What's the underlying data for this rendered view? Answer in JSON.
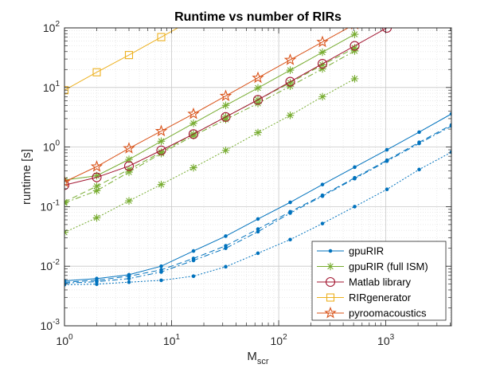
{
  "chart_data": {
    "type": "line",
    "title": "Runtime vs number of RIRs",
    "xlabel": "M",
    "xlabel_sub": "scr",
    "ylabel": "runtime [s]",
    "xscale": "log",
    "yscale": "log",
    "xlim": [
      1,
      4096
    ],
    "ylim": [
      0.001,
      100
    ],
    "grid": true,
    "minor_grid": true,
    "legend_position": "bottom-right",
    "x_ticks": [
      {
        "value": 1,
        "base": "10",
        "exp": "0"
      },
      {
        "value": 10,
        "base": "10",
        "exp": "1"
      },
      {
        "value": 100,
        "base": "10",
        "exp": "2"
      },
      {
        "value": 1000,
        "base": "10",
        "exp": "3"
      }
    ],
    "y_ticks": [
      {
        "value": 0.001,
        "base": "10",
        "exp": "-3"
      },
      {
        "value": 0.01,
        "base": "10",
        "exp": "-2"
      },
      {
        "value": 0.1,
        "base": "10",
        "exp": "-1"
      },
      {
        "value": 1,
        "base": "10",
        "exp": "0"
      },
      {
        "value": 10,
        "base": "10",
        "exp": "1"
      },
      {
        "value": 100,
        "base": "10",
        "exp": "2"
      }
    ],
    "series": [
      {
        "name": "gpuRIR",
        "legend": true,
        "color": "#0072BD",
        "marker": "dot",
        "dash": "",
        "x": [
          1,
          2,
          4,
          8,
          16,
          32,
          64,
          128,
          256,
          512,
          1024,
          2048,
          4096
        ],
        "y": [
          0.0057,
          0.0062,
          0.0072,
          0.01,
          0.018,
          0.032,
          0.062,
          0.118,
          0.235,
          0.46,
          0.9,
          1.78,
          3.6
        ]
      },
      {
        "name": "",
        "legend": false,
        "color": "#0072BD",
        "marker": "dot",
        "dash": "7,4",
        "x": [
          1,
          2,
          4,
          8,
          16,
          32,
          64,
          128,
          256,
          512,
          1024,
          2048,
          4096
        ],
        "y": [
          0.0054,
          0.0058,
          0.0068,
          0.0087,
          0.0135,
          0.022,
          0.042,
          0.082,
          0.155,
          0.305,
          0.6,
          1.2,
          2.35
        ]
      },
      {
        "name": "",
        "legend": false,
        "color": "#0072BD",
        "marker": "dot",
        "dash": "7,3,2,3",
        "x": [
          1,
          2,
          4,
          8,
          16,
          32,
          64,
          128,
          256,
          512,
          1024,
          2048,
          4096
        ],
        "y": [
          0.0052,
          0.0055,
          0.0062,
          0.008,
          0.0125,
          0.02,
          0.038,
          0.078,
          0.15,
          0.295,
          0.58,
          1.15,
          2.25
        ]
      },
      {
        "name": "",
        "legend": false,
        "color": "#0072BD",
        "marker": "dot",
        "dash": "2,2",
        "x": [
          1,
          2,
          4,
          8,
          16,
          32,
          64,
          128,
          256,
          512,
          1024,
          2048,
          4096
        ],
        "y": [
          0.0049,
          0.005,
          0.0054,
          0.0058,
          0.0068,
          0.0098,
          0.0165,
          0.028,
          0.052,
          0.1,
          0.195,
          0.42,
          0.82
        ]
      },
      {
        "name": "gpuRIR (full ISM)",
        "legend": true,
        "color": "#77AC30",
        "marker": "asterisk",
        "dash": "",
        "x": [
          1,
          2,
          4,
          8,
          16,
          32,
          64,
          128,
          256,
          512
        ],
        "y": [
          0.28,
          0.33,
          0.62,
          1.25,
          2.5,
          5.0,
          9.8,
          19.5,
          39,
          78
        ]
      },
      {
        "name": "",
        "legend": false,
        "color": "#77AC30",
        "marker": "asterisk",
        "dash": "7,4",
        "x": [
          1,
          2,
          4,
          8,
          16,
          32,
          64,
          128,
          256,
          512
        ],
        "y": [
          0.12,
          0.22,
          0.42,
          0.82,
          1.65,
          3.2,
          6.2,
          12,
          24,
          46
        ]
      },
      {
        "name": "",
        "legend": false,
        "color": "#77AC30",
        "marker": "asterisk",
        "dash": "7,3,2,3",
        "x": [
          1,
          2,
          4,
          8,
          16,
          32,
          64,
          128,
          256,
          512
        ],
        "y": [
          0.115,
          0.185,
          0.38,
          0.78,
          1.55,
          2.9,
          5.4,
          10.5,
          20.5,
          41
        ]
      },
      {
        "name": "",
        "legend": false,
        "color": "#77AC30",
        "marker": "asterisk",
        "dash": "2,2",
        "x": [
          1,
          2,
          4,
          8,
          16,
          32,
          64,
          128,
          256,
          512
        ],
        "y": [
          0.037,
          0.065,
          0.125,
          0.235,
          0.45,
          0.88,
          1.75,
          3.4,
          7.0,
          14
        ]
      },
      {
        "name": "Matlab library",
        "legend": true,
        "color": "#A2142F",
        "marker": "circle",
        "dash": "",
        "x": [
          1,
          2,
          4,
          8,
          16,
          32,
          64,
          128,
          256,
          512,
          1024
        ],
        "y": [
          0.23,
          0.31,
          0.48,
          0.88,
          1.65,
          3.2,
          6.2,
          12.5,
          25,
          50,
          100
        ]
      },
      {
        "name": "RIRgenerator",
        "legend": true,
        "color": "#EDB120",
        "marker": "square",
        "dash": "",
        "x": [
          1,
          2,
          4,
          8,
          16
        ],
        "y": [
          9,
          18,
          35,
          70,
          140
        ]
      },
      {
        "name": "pyroomacoustics",
        "legend": true,
        "color": "#D95319",
        "marker": "star",
        "dash": "",
        "x": [
          1,
          2,
          4,
          8,
          16,
          32,
          64,
          128,
          256,
          512
        ],
        "y": [
          0.26,
          0.47,
          0.95,
          1.85,
          3.6,
          7.2,
          14.5,
          29,
          58,
          115
        ]
      }
    ]
  }
}
